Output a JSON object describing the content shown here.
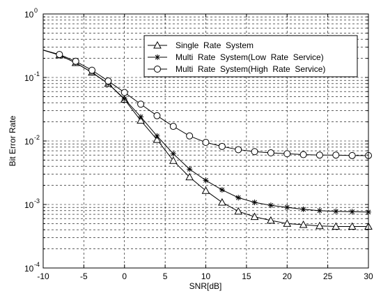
{
  "chart_data": {
    "type": "line",
    "title": "",
    "xlabel": "SNR[dB]",
    "ylabel": "Bit  Error  Rate",
    "xlim": [
      -10,
      30
    ],
    "ylim": [
      0.0001,
      1
    ],
    "yscale": "log",
    "grid": "on (dashed, major and minor)",
    "legend_position": "top-right",
    "x_ticks": [
      -10,
      -5,
      0,
      5,
      10,
      15,
      20,
      25,
      30
    ],
    "x_tick_labels": [
      "-10",
      "-5",
      "0",
      "5",
      "10",
      "15",
      "20",
      "25",
      "30"
    ],
    "y_ticks": [
      {
        "value": 1,
        "base": "10",
        "exp": "0"
      },
      {
        "value": 0.1,
        "base": "10",
        "exp": "-1"
      },
      {
        "value": 0.01,
        "base": "10",
        "exp": "-2"
      },
      {
        "value": 0.001,
        "base": "10",
        "exp": "-3"
      },
      {
        "value": 0.0001,
        "base": "10",
        "exp": "-4"
      }
    ],
    "x": [
      -10,
      -8,
      -6,
      -4,
      -2,
      0,
      2,
      4,
      6,
      8,
      10,
      12,
      14,
      16,
      18,
      20,
      22,
      24,
      26,
      28,
      30
    ],
    "series": [
      {
        "name": "Single  Rate  System",
        "marker": "triangle",
        "values": [
          0.27,
          0.225,
          0.17,
          0.12,
          0.08,
          0.045,
          0.021,
          0.0105,
          0.0049,
          0.0027,
          0.00165,
          0.00108,
          0.00078,
          0.00064,
          0.00056,
          0.0005,
          0.00048,
          0.00046,
          0.00045,
          0.00045,
          0.00045
        ]
      },
      {
        "name": "Multi  Rate  System(Low  Rate  Service)",
        "marker": "asterisk",
        "values": [
          0.27,
          0.225,
          0.17,
          0.12,
          0.08,
          0.046,
          0.024,
          0.012,
          0.0063,
          0.0036,
          0.0024,
          0.0017,
          0.00128,
          0.00108,
          0.00097,
          0.0009,
          0.00084,
          0.0008,
          0.00078,
          0.00077,
          0.00076
        ]
      },
      {
        "name": "Multi  Rate  System(High  Rate  Service)",
        "marker": "circle",
        "values": [
          0.27,
          0.23,
          0.18,
          0.13,
          0.088,
          0.058,
          0.038,
          0.025,
          0.017,
          0.012,
          0.0095,
          0.0082,
          0.0073,
          0.0068,
          0.0065,
          0.0063,
          0.0061,
          0.006,
          0.006,
          0.0059,
          0.0059
        ]
      }
    ]
  }
}
